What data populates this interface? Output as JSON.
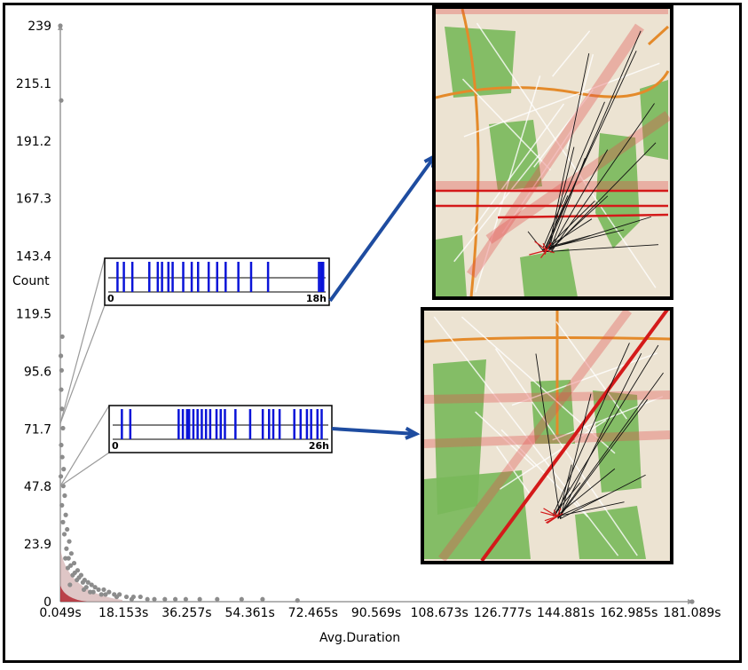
{
  "chart_data": {
    "type": "scatter",
    "xlabel": "Avg.Duration",
    "ylabel": "Count",
    "xlim": [
      0.049,
      181.089
    ],
    "ylim": [
      0,
      239
    ],
    "x_ticks": [
      "0.049s",
      "18.153s",
      "36.257s",
      "54.361s",
      "72.465s",
      "90.569s",
      "108.673s",
      "126.777s",
      "144.881s",
      "162.985s",
      "181.089s"
    ],
    "y_ticks": [
      "0",
      "23.9",
      "47.8",
      "71.7",
      "95.6",
      "119.5",
      "143.4",
      "167.3",
      "191.2",
      "215.1",
      "239"
    ],
    "points": [
      [
        0.05,
        239
      ],
      [
        0.3,
        208
      ],
      [
        0.6,
        110
      ],
      [
        0.2,
        102
      ],
      [
        0.4,
        96
      ],
      [
        0.3,
        88
      ],
      [
        0.5,
        80
      ],
      [
        0.8,
        72
      ],
      [
        0.3,
        65
      ],
      [
        0.6,
        60
      ],
      [
        1.0,
        55
      ],
      [
        0.2,
        52
      ],
      [
        0.9,
        48
      ],
      [
        1.3,
        44
      ],
      [
        0.5,
        40
      ],
      [
        1.6,
        36
      ],
      [
        0.8,
        33
      ],
      [
        2.0,
        30
      ],
      [
        1.2,
        28
      ],
      [
        2.6,
        25
      ],
      [
        1.8,
        22
      ],
      [
        3.2,
        20
      ],
      [
        2.4,
        18
      ],
      [
        4.0,
        16
      ],
      [
        3.0,
        15
      ],
      [
        5.0,
        13
      ],
      [
        4.2,
        12
      ],
      [
        6.0,
        11
      ],
      [
        5.4,
        10
      ],
      [
        7.0,
        9
      ],
      [
        6.5,
        8
      ],
      [
        8.0,
        8
      ],
      [
        9.0,
        7
      ],
      [
        7.5,
        6
      ],
      [
        10.0,
        6
      ],
      [
        11.0,
        5
      ],
      [
        12.5,
        5
      ],
      [
        9.5,
        4
      ],
      [
        14.0,
        4
      ],
      [
        15.5,
        3
      ],
      [
        13.0,
        3
      ],
      [
        17.0,
        3
      ],
      [
        19.0,
        2
      ],
      [
        21.0,
        2
      ],
      [
        23.0,
        2
      ],
      [
        25.0,
        1
      ],
      [
        27.0,
        1
      ],
      [
        30.0,
        1
      ],
      [
        33.0,
        1
      ],
      [
        36.0,
        1
      ],
      [
        40.0,
        1
      ],
      [
        45.0,
        1
      ],
      [
        52.0,
        1
      ],
      [
        58.0,
        1
      ],
      [
        68.0,
        0.5
      ],
      [
        2.2,
        14
      ],
      [
        3.6,
        11
      ],
      [
        4.8,
        9
      ],
      [
        1.5,
        18
      ],
      [
        2.8,
        7
      ],
      [
        6.8,
        5
      ],
      [
        8.6,
        4
      ],
      [
        11.8,
        3
      ],
      [
        16.2,
        2
      ],
      [
        20.5,
        1
      ],
      [
        181.089,
        0
      ]
    ],
    "insets": [
      {
        "start_label": "0",
        "end_label": "18h",
        "y_anchor": 74,
        "bars": [
          3,
          6,
          10,
          18,
          22,
          24,
          27,
          29,
          34,
          38,
          41,
          46,
          50,
          54,
          60,
          66,
          74,
          98,
          99,
          100
        ]
      },
      {
        "start_label": "0",
        "end_label": "26h",
        "y_anchor": 48,
        "bars": [
          3,
          7,
          30,
          32,
          34,
          35,
          37,
          39,
          41,
          43,
          45,
          48,
          50,
          52,
          57,
          64,
          70,
          73,
          75,
          78,
          85,
          88,
          91,
          93,
          96,
          98
        ]
      }
    ]
  },
  "colors": {
    "points": "#8c8c8c",
    "dense": "#b0202a",
    "inset_bars": "#0a14d8",
    "arrows": "#1e4ca0"
  },
  "maps": [
    {
      "name": "map-top",
      "rays": 18
    },
    {
      "name": "map-bottom",
      "rays": 14
    }
  ]
}
